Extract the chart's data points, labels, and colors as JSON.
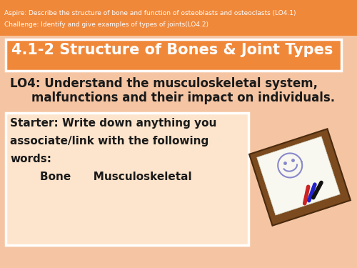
{
  "bg_color": "#f5c5a3",
  "orange_color": "#f0883a",
  "white_color": "#ffffff",
  "dark_text": "#1a1a1a",
  "white_text": "#ffffff",
  "top_bar_text1": "Aspire: Describe the structure of bone and function of osteoblasts and osteoclasts (LO4.1)",
  "top_bar_text2": "Challenge: Identify and give examples of types of joints(LO4.2)",
  "title_text": "4.1-2 Structure of Bones & Joint Types",
  "lo_text1": "LO4: Understand the musculoskeletal system,",
  "lo_text2": "malfunctions and their impact on individuals.",
  "starter_line1": "Starter: Write down anything you",
  "starter_line2": "associate/link with the following",
  "starter_line3": "words:",
  "starter_line4": "        Bone      Musculoskeletal",
  "wb_frame_color": "#7b4a1e",
  "wb_board_color": "#f8f8f0",
  "smiley_color": "#8888cc",
  "pen_colors": [
    "#cc2222",
    "#2222cc",
    "#111111"
  ],
  "starter_box_color": "#fde4cc"
}
